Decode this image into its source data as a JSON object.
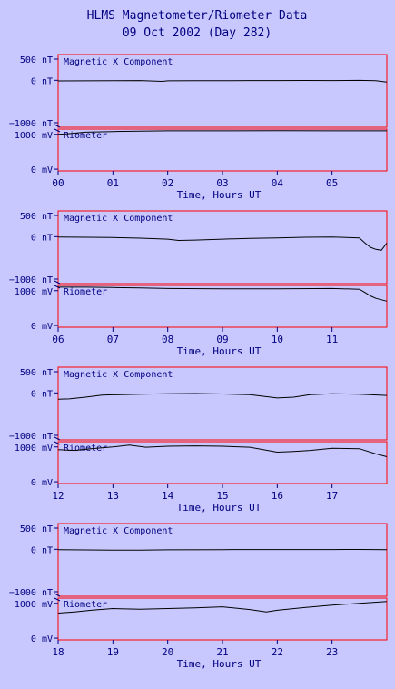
{
  "chart_data": {
    "type": "line",
    "title": "HLMS Magnetometer/Riometer Data",
    "subtitle": "09 Oct 2002 (Day 282)",
    "colors": {
      "background": "#c8c8ff",
      "frame": "#ff0000",
      "text": "#000080",
      "trace": "#000000"
    },
    "grid": false,
    "mag_label": "Magnetic X Component",
    "rio_label": "Riometer",
    "mag_ticks": [
      "500 nT",
      "0 nT",
      "−1000 nT"
    ],
    "rio_ticks": [
      "1000 mV",
      "0 mV"
    ],
    "mag_ylim": [
      -1000,
      500
    ],
    "rio_ylim": [
      -50,
      1150
    ],
    "xlabel": "Time, Hours UT",
    "segments": [
      {
        "xlim": [
          0,
          6
        ],
        "xticks": [
          "00",
          "01",
          "02",
          "03",
          "04",
          "05"
        ],
        "series": [
          {
            "name": "Magnetic X Component",
            "x": [
              0,
              0.5,
              1,
              1.5,
              1.9,
              2,
              2.5,
              3,
              3.5,
              4,
              4.5,
              5,
              5.5,
              5.8,
              6
            ],
            "y": [
              -15,
              -12,
              -8,
              -5,
              -25,
              -12,
              -8,
              -10,
              -5,
              -6,
              -3,
              -5,
              -2,
              -8,
              -40
            ]
          },
          {
            "name": "Riometer",
            "x": [
              0,
              0.2,
              0.5,
              1,
              1.5,
              2,
              3,
              4,
              5,
              6
            ],
            "y": [
              1000,
              1020,
              1060,
              1080,
              1090,
              1100,
              1100,
              1105,
              1100,
              1100
            ]
          }
        ]
      },
      {
        "xlim": [
          6,
          12
        ],
        "xticks": [
          "06",
          "07",
          "08",
          "09",
          "10",
          "11"
        ],
        "series": [
          {
            "name": "Magnetic X Component",
            "x": [
              6,
              6.5,
              7,
              7.5,
              8,
              8.2,
              8.5,
              9,
              9.5,
              10,
              10.5,
              11,
              11.5,
              11.6,
              11.7,
              11.8,
              11.9,
              12
            ],
            "y": [
              -10,
              -15,
              -20,
              -35,
              -60,
              -90,
              -80,
              -60,
              -40,
              -30,
              -15,
              -10,
              -30,
              -150,
              -250,
              -300,
              -320,
              -150
            ]
          },
          {
            "name": "Riometer",
            "x": [
              6,
              6.5,
              7,
              7.5,
              8,
              9,
              10,
              11,
              11.5,
              11.6,
              11.7,
              11.8,
              12
            ],
            "y": [
              1100,
              1100,
              1090,
              1080,
              1060,
              1050,
              1050,
              1060,
              1040,
              950,
              850,
              780,
              700
            ]
          }
        ]
      },
      {
        "xlim": [
          12,
          18
        ],
        "xticks": [
          "12",
          "13",
          "14",
          "15",
          "16",
          "17"
        ],
        "series": [
          {
            "name": "Magnetic X Component",
            "x": [
              12,
              12.2,
              12.5,
              12.8,
              13,
              13.5,
              14,
              14.5,
              15,
              15.5,
              16,
              16.3,
              16.6,
              17,
              17.5,
              18
            ],
            "y": [
              -150,
              -140,
              -100,
              -50,
              -45,
              -30,
              -20,
              -15,
              -25,
              -40,
              -120,
              -100,
              -40,
              -20,
              -30,
              -60
            ]
          },
          {
            "name": "Riometer",
            "x": [
              12,
              12.3,
              12.6,
              13,
              13.3,
              13.6,
              14,
              14.5,
              15,
              15.5,
              16,
              16.3,
              16.6,
              17,
              17.5,
              17.8,
              18
            ],
            "y": [
              920,
              900,
              950,
              1000,
              1050,
              990,
              1020,
              1030,
              1020,
              990,
              850,
              870,
              900,
              960,
              950,
              800,
              720
            ]
          }
        ]
      },
      {
        "xlim": [
          18,
          24
        ],
        "xticks": [
          "18",
          "19",
          "20",
          "21",
          "22",
          "23"
        ],
        "series": [
          {
            "name": "Magnetic X Component",
            "x": [
              18,
              18.5,
              19,
              19.5,
              20,
              21,
              22,
              23,
              23.5,
              24
            ],
            "y": [
              -10,
              -15,
              -20,
              -18,
              -12,
              -8,
              -5,
              -5,
              -3,
              -10
            ]
          },
          {
            "name": "Riometer",
            "x": [
              18,
              18.3,
              18.6,
              19,
              19.5,
              20,
              20.5,
              21,
              21.5,
              21.8,
              22,
              22.5,
              23,
              23.5,
              24
            ],
            "y": [
              720,
              750,
              800,
              850,
              830,
              850,
              870,
              900,
              820,
              750,
              800,
              880,
              950,
              1000,
              1050
            ]
          }
        ]
      }
    ]
  }
}
